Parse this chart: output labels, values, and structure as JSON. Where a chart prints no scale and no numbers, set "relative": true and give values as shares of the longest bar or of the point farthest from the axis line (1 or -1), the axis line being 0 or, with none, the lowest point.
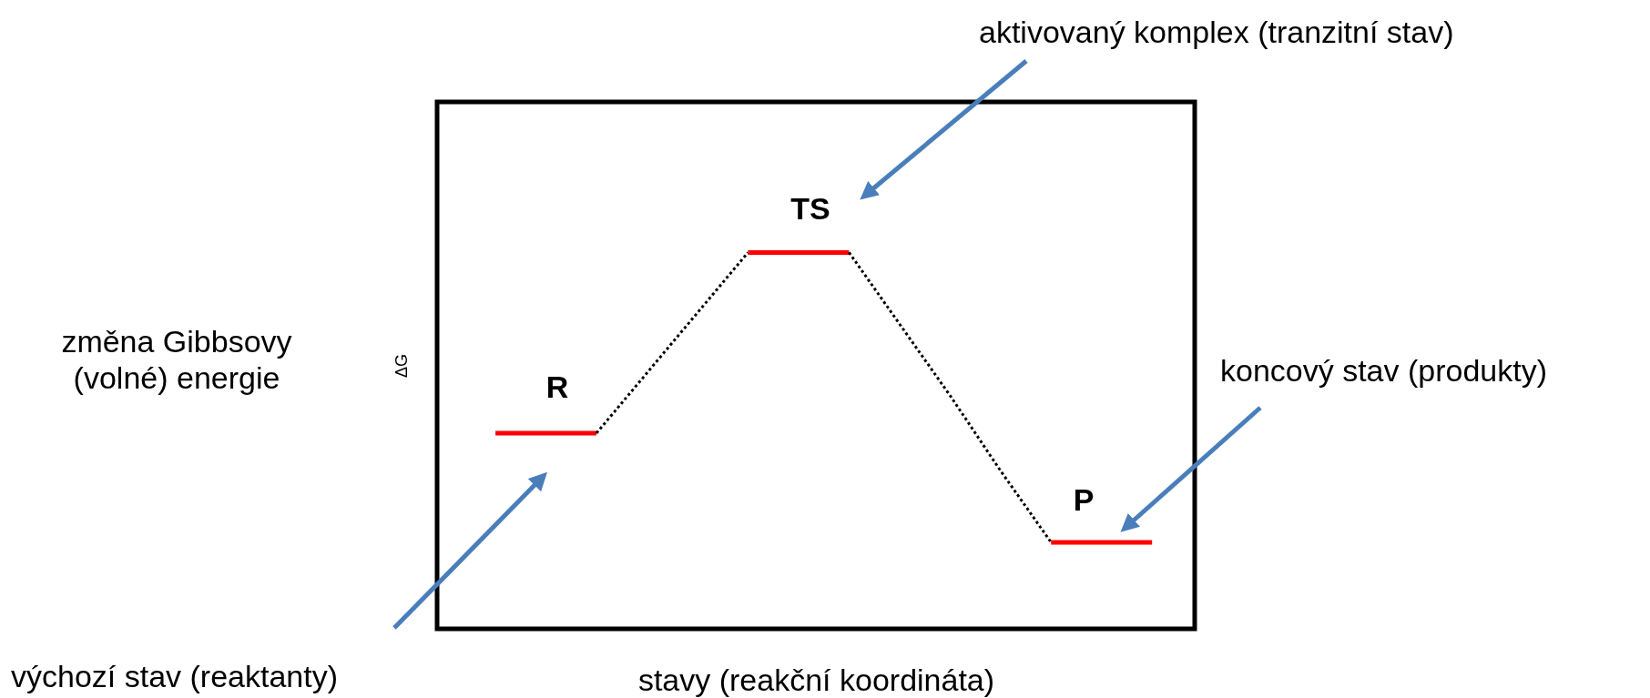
{
  "chart_data": {
    "type": "line",
    "relative": true,
    "xlabel": "stavy (reakční koordináta)",
    "ylabel": "ΔG",
    "categories": [
      null,
      null,
      null,
      null,
      null,
      null,
      null,
      null,
      null,
      null,
      null,
      null,
      null,
      null
    ],
    "tick_labels": false,
    "grid": false,
    "series": [
      {
        "color": "#ff0000",
        "line_style": "solid",
        "values": [
          0.52,
          0.52,
          0.52,
          null,
          null,
          null,
          null,
          null,
          null,
          null,
          null,
          null,
          null,
          null
        ]
      },
      {
        "color": "#000000",
        "line_style": "dotted",
        "values": [
          null,
          null,
          0.52,
          0.68,
          0.84,
          1,
          null,
          null,
          null,
          null,
          null,
          null,
          null,
          null
        ]
      },
      {
        "color": "#ff0000",
        "line_style": "solid",
        "values": [
          null,
          null,
          null,
          null,
          null,
          1,
          1,
          1,
          null,
          null,
          null,
          null,
          null,
          null
        ]
      },
      {
        "color": "#000000",
        "line_style": "dotted",
        "values": [
          null,
          null,
          null,
          null,
          null,
          null,
          null,
          1,
          0.81,
          0.62,
          0.42,
          0.23,
          null,
          null
        ]
      },
      {
        "color": "#ff0000",
        "line_style": "solid",
        "values": [
          null,
          null,
          null,
          null,
          null,
          null,
          null,
          null,
          null,
          null,
          null,
          0.23,
          0.23,
          0.23
        ]
      }
    ],
    "annotations": [
      "R",
      "TS",
      "P",
      "změna Gibbsovy (volné) energie",
      "aktivovaný komplex (tranzitní stav)",
      "koncový stav (produkty)",
      "výchozí stav (reaktanty)"
    ]
  }
}
